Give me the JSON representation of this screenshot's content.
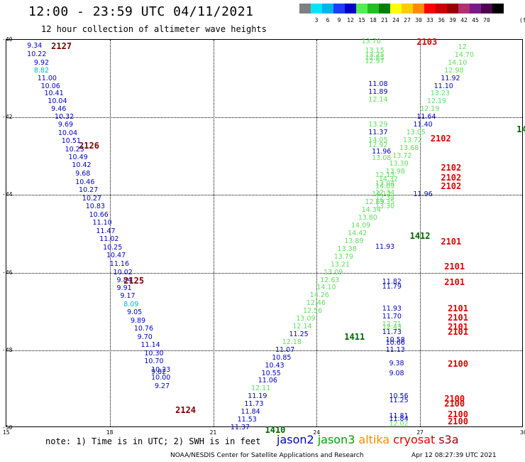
{
  "title": "12:00 - 23:59 UTC 04/11/2021",
  "subtitle": "12 hour collection of altimeter wave heights",
  "colorbar": {
    "colors": [
      "#808080",
      "#00e5ff",
      "#00b4f0",
      "#1e3cff",
      "#0000c8",
      "#50f050",
      "#20c020",
      "#008000",
      "#ffff00",
      "#ffcc00",
      "#ff8c00",
      "#ff0000",
      "#cc0000",
      "#990000",
      "#b03070",
      "#7a1a8a",
      "#500050",
      "#000000"
    ],
    "ticks": [
      "3",
      "6",
      "9",
      "12",
      "15",
      "18",
      "21",
      "24",
      "27",
      "30",
      "33",
      "36",
      "39",
      "42",
      "45",
      "70"
    ],
    "unit": "(ft)"
  },
  "axes": {
    "y_ticks": [
      "-40",
      "-42",
      "-44",
      "-46",
      "-48",
      "-50"
    ],
    "x_ticks": [
      "15",
      "18",
      "21",
      "24",
      "27",
      "30"
    ]
  },
  "chart_data": {
    "type": "scatter",
    "description_units": "x = longitude (deg), y = latitude (deg), value = SWH (ft)",
    "xlim": [
      15,
      30
    ],
    "ylim": [
      -50,
      -40
    ],
    "series_colors": {
      "jason2": "#0000c8",
      "jason3": "#00a000",
      "altika": "#ff8c00",
      "cryosat": "#dd0000",
      "s3a": "#990000"
    },
    "passes": [
      {
        "label": "2127",
        "x": 16.3,
        "y": -40.17,
        "color": "#7a0000"
      },
      {
        "label": "2126",
        "x": 17.1,
        "y": -42.73,
        "color": "#7a0000"
      },
      {
        "label": "2125",
        "x": 18.4,
        "y": -46.2,
        "color": "#7a0000"
      },
      {
        "label": "2124",
        "x": 19.9,
        "y": -49.55,
        "color": "#7a0000"
      },
      {
        "label": "2103",
        "x": 26.9,
        "y": -40.05,
        "color": "#dd0000"
      },
      {
        "label": "2102",
        "x": 27.3,
        "y": -42.55,
        "color": "#dd0000"
      },
      {
        "label": "2102",
        "x": 27.6,
        "y": -43.3,
        "color": "#dd0000"
      },
      {
        "label": "2102",
        "x": 27.6,
        "y": -43.55,
        "color": "#dd0000"
      },
      {
        "label": "2102",
        "x": 27.6,
        "y": -43.78,
        "color": "#dd0000"
      },
      {
        "label": "2101",
        "x": 27.6,
        "y": -45.2,
        "color": "#dd0000"
      },
      {
        "label": "2101",
        "x": 27.7,
        "y": -45.85,
        "color": "#dd0000"
      },
      {
        "label": "2101",
        "x": 27.7,
        "y": -46.25,
        "color": "#dd0000"
      },
      {
        "label": "2101",
        "x": 27.8,
        "y": -46.92,
        "color": "#dd0000"
      },
      {
        "label": "2101",
        "x": 27.8,
        "y": -47.16,
        "color": "#dd0000"
      },
      {
        "label": "2101",
        "x": 27.8,
        "y": -47.4,
        "color": "#dd0000"
      },
      {
        "label": "2101",
        "x": 27.8,
        "y": -47.52,
        "color": "#dd0000"
      },
      {
        "label": "2100",
        "x": 27.8,
        "y": -48.35,
        "color": "#dd0000"
      },
      {
        "label": "2100",
        "x": 27.7,
        "y": -49.25,
        "color": "#dd0000"
      },
      {
        "label": "2100",
        "x": 27.7,
        "y": -49.37,
        "color": "#dd0000"
      },
      {
        "label": "2100",
        "x": 27.8,
        "y": -49.66,
        "color": "#dd0000"
      },
      {
        "label": "2100",
        "x": 27.8,
        "y": -49.84,
        "color": "#dd0000"
      },
      {
        "label": "1412",
        "x": 26.7,
        "y": -45.05,
        "color": "#006400"
      },
      {
        "label": "1411",
        "x": 24.8,
        "y": -47.65,
        "color": "#006400"
      },
      {
        "label": "1410",
        "x": 22.5,
        "y": -50.05,
        "color": "#006400"
      },
      {
        "label": "14",
        "x": 29.8,
        "y": -42.3,
        "color": "#006400"
      }
    ],
    "points": [
      {
        "v": "9.34",
        "x": 15.6,
        "y": -40.17,
        "s": "jason2"
      },
      {
        "v": "10.22",
        "x": 15.6,
        "y": -40.38,
        "s": "jason2"
      },
      {
        "v": "9.92",
        "x": 15.8,
        "y": -40.6,
        "s": "jason2"
      },
      {
        "v": "8.82",
        "x": 15.8,
        "y": -40.8,
        "s": "cyan"
      },
      {
        "v": "11.00",
        "x": 15.9,
        "y": -41.0,
        "s": "jason2"
      },
      {
        "v": "10.06",
        "x": 16.0,
        "y": -41.2,
        "s": "jason2"
      },
      {
        "v": "10.41",
        "x": 16.1,
        "y": -41.4,
        "s": "jason2"
      },
      {
        "v": "10.04",
        "x": 16.2,
        "y": -41.6,
        "s": "jason2"
      },
      {
        "v": "9.46",
        "x": 16.3,
        "y": -41.8,
        "s": "jason2"
      },
      {
        "v": "10.32",
        "x": 16.4,
        "y": -42.0,
        "s": "jason2"
      },
      {
        "v": "9.69",
        "x": 16.5,
        "y": -42.2,
        "s": "jason2"
      },
      {
        "v": "10.04",
        "x": 16.5,
        "y": -42.42,
        "s": "jason2"
      },
      {
        "v": "10.51",
        "x": 16.6,
        "y": -42.62,
        "s": "jason2"
      },
      {
        "v": "10.23",
        "x": 16.7,
        "y": -42.83,
        "s": "jason2"
      },
      {
        "v": "10.49",
        "x": 16.8,
        "y": -43.04,
        "s": "jason2"
      },
      {
        "v": "10.42",
        "x": 16.9,
        "y": -43.25,
        "s": "jason2"
      },
      {
        "v": "9.68",
        "x": 17.0,
        "y": -43.46,
        "s": "jason2"
      },
      {
        "v": "10.46",
        "x": 17.0,
        "y": -43.68,
        "s": "jason2"
      },
      {
        "v": "10.27",
        "x": 17.1,
        "y": -43.88,
        "s": "jason2"
      },
      {
        "v": "10.27",
        "x": 17.2,
        "y": -44.1,
        "s": "jason2"
      },
      {
        "v": "10.83",
        "x": 17.3,
        "y": -44.3,
        "s": "jason2"
      },
      {
        "v": "10.66",
        "x": 17.4,
        "y": -44.52,
        "s": "jason2"
      },
      {
        "v": "11.10",
        "x": 17.5,
        "y": -44.73,
        "s": "jason2"
      },
      {
        "v": "11.47",
        "x": 17.6,
        "y": -44.94,
        "s": "jason2"
      },
      {
        "v": "11.02",
        "x": 17.7,
        "y": -45.15,
        "s": "jason2"
      },
      {
        "v": "10.25",
        "x": 17.8,
        "y": -45.36,
        "s": "jason2"
      },
      {
        "v": "10.47",
        "x": 17.9,
        "y": -45.57,
        "s": "jason2"
      },
      {
        "v": "11.16",
        "x": 18.0,
        "y": -45.78,
        "s": "jason2"
      },
      {
        "v": "10.02",
        "x": 18.1,
        "y": -46.0,
        "s": "jason2"
      },
      {
        "v": "9.84",
        "x": 18.2,
        "y": -46.2,
        "s": "jason2"
      },
      {
        "v": "9.91",
        "x": 18.2,
        "y": -46.41,
        "s": "jason2"
      },
      {
        "v": "9.17",
        "x": 18.3,
        "y": -46.62,
        "s": "jason2"
      },
      {
        "v": "8.09",
        "x": 18.4,
        "y": -46.83,
        "s": "cyan"
      },
      {
        "v": "9.05",
        "x": 18.5,
        "y": -47.04,
        "s": "jason2"
      },
      {
        "v": "9.89",
        "x": 18.6,
        "y": -47.25,
        "s": "jason2"
      },
      {
        "v": "10.76",
        "x": 18.7,
        "y": -47.46,
        "s": "jason2"
      },
      {
        "v": "9.70",
        "x": 18.8,
        "y": -47.67,
        "s": "jason2"
      },
      {
        "v": "11.14",
        "x": 18.9,
        "y": -47.88,
        "s": "jason2"
      },
      {
        "v": "10.30",
        "x": 19.0,
        "y": -48.1,
        "s": "jason2"
      },
      {
        "v": "10.70",
        "x": 19.0,
        "y": -48.3,
        "s": "jason2"
      },
      {
        "v": "10.23",
        "x": 19.2,
        "y": -48.52,
        "s": "jason2"
      },
      {
        "v": "9.82",
        "x": 19.2,
        "y": -48.58,
        "s": "jason2"
      },
      {
        "v": "10.00",
        "x": 19.2,
        "y": -48.72,
        "s": "jason2"
      },
      {
        "v": "9.27",
        "x": 19.3,
        "y": -48.93,
        "s": "jason2"
      },
      {
        "v": "11.37",
        "x": 21.5,
        "y": -50.0,
        "s": "jason2"
      },
      {
        "v": "11.53",
        "x": 21.7,
        "y": -49.8,
        "s": "jason2"
      },
      {
        "v": "11.84",
        "x": 21.8,
        "y": -49.6,
        "s": "jason2"
      },
      {
        "v": "11.73",
        "x": 21.9,
        "y": -49.4,
        "s": "jason2"
      },
      {
        "v": "11.19",
        "x": 22.0,
        "y": -49.2,
        "s": "jason2"
      },
      {
        "v": "12.11",
        "x": 22.1,
        "y": -49.0,
        "s": "jason3"
      },
      {
        "v": "11.06",
        "x": 22.3,
        "y": -48.8,
        "s": "jason2"
      },
      {
        "v": "10.55",
        "x": 22.4,
        "y": -48.6,
        "s": "jason2"
      },
      {
        "v": "10.43",
        "x": 22.5,
        "y": -48.4,
        "s": "jason2"
      },
      {
        "v": "10.85",
        "x": 22.7,
        "y": -48.2,
        "s": "jason2"
      },
      {
        "v": "11.07",
        "x": 22.8,
        "y": -48.0,
        "s": "jason2"
      },
      {
        "v": "12.18",
        "x": 23.0,
        "y": -47.8,
        "s": "jason3"
      },
      {
        "v": "11.25",
        "x": 23.2,
        "y": -47.6,
        "s": "jason2"
      },
      {
        "v": "12.14",
        "x": 23.3,
        "y": -47.4,
        "s": "jason3"
      },
      {
        "v": "13.09",
        "x": 23.4,
        "y": -47.2,
        "s": "jason3"
      },
      {
        "v": "12.56",
        "x": 23.6,
        "y": -47.0,
        "s": "jason3"
      },
      {
        "v": "12.46",
        "x": 23.7,
        "y": -46.8,
        "s": "jason3"
      },
      {
        "v": "14.26",
        "x": 23.8,
        "y": -46.6,
        "s": "jason3"
      },
      {
        "v": "14.10",
        "x": 24.0,
        "y": -46.4,
        "s": "jason3"
      },
      {
        "v": "12.63",
        "x": 24.1,
        "y": -46.2,
        "s": "jason3"
      },
      {
        "v": "13.09",
        "x": 24.2,
        "y": -46.0,
        "s": "jason3"
      },
      {
        "v": "13.21",
        "x": 24.4,
        "y": -45.8,
        "s": "jason3"
      },
      {
        "v": "13.79",
        "x": 24.5,
        "y": -45.6,
        "s": "jason3"
      },
      {
        "v": "13.38",
        "x": 24.6,
        "y": -45.4,
        "s": "jason3"
      },
      {
        "v": "13.89",
        "x": 24.8,
        "y": -45.2,
        "s": "jason3"
      },
      {
        "v": "14.42",
        "x": 24.9,
        "y": -45.0,
        "s": "jason3"
      },
      {
        "v": "14.09",
        "x": 25.0,
        "y": -44.8,
        "s": "jason3"
      },
      {
        "v": "13.80",
        "x": 25.2,
        "y": -44.6,
        "s": "jason3"
      },
      {
        "v": "14.34",
        "x": 25.3,
        "y": -44.4,
        "s": "jason3"
      },
      {
        "v": "12.69",
        "x": 25.4,
        "y": -44.2,
        "s": "jason3"
      },
      {
        "v": "14.12",
        "x": 25.6,
        "y": -44.0,
        "s": "jason3"
      },
      {
        "v": "14.09",
        "x": 25.7,
        "y": -43.8,
        "s": "jason3"
      },
      {
        "v": "14.32",
        "x": 25.8,
        "y": -43.6,
        "s": "jason3"
      },
      {
        "v": "13.98",
        "x": 26.0,
        "y": -43.4,
        "s": "jason3"
      },
      {
        "v": "13.30",
        "x": 26.1,
        "y": -43.2,
        "s": "jason3"
      },
      {
        "v": "13.72",
        "x": 26.2,
        "y": -43.0,
        "s": "jason3"
      },
      {
        "v": "13.68",
        "x": 26.4,
        "y": -42.8,
        "s": "jason3"
      },
      {
        "v": "13.72",
        "x": 26.5,
        "y": -42.6,
        "s": "jason3"
      },
      {
        "v": "13.05",
        "x": 26.6,
        "y": -42.4,
        "s": "jason3"
      },
      {
        "v": "11.40",
        "x": 26.8,
        "y": -42.2,
        "s": "jason2"
      },
      {
        "v": "11.64",
        "x": 26.9,
        "y": -42.0,
        "s": "jason2"
      },
      {
        "v": "12.19",
        "x": 27.0,
        "y": -41.8,
        "s": "jason3"
      },
      {
        "v": "12.19",
        "x": 27.2,
        "y": -41.6,
        "s": "jason3"
      },
      {
        "v": "13.23",
        "x": 27.3,
        "y": -41.4,
        "s": "jason3"
      },
      {
        "v": "11.10",
        "x": 27.4,
        "y": -41.2,
        "s": "jason2"
      },
      {
        "v": "11.92",
        "x": 27.6,
        "y": -41.0,
        "s": "jason2"
      },
      {
        "v": "12.98",
        "x": 27.7,
        "y": -40.8,
        "s": "jason3"
      },
      {
        "v": "14.10",
        "x": 27.8,
        "y": -40.6,
        "s": "jason3"
      },
      {
        "v": "14.70",
        "x": 28.0,
        "y": -40.4,
        "s": "jason3"
      },
      {
        "v": "12",
        "x": 28.1,
        "y": -40.2,
        "s": "jason3"
      },
      {
        "v": "13.70",
        "x": 25.3,
        "y": -40.05,
        "s": "jason3"
      },
      {
        "v": "13.15",
        "x": 25.4,
        "y": -40.3,
        "s": "jason3"
      },
      {
        "v": "13.25",
        "x": 25.4,
        "y": -40.4,
        "s": "jason3"
      },
      {
        "v": "12.85",
        "x": 25.4,
        "y": -40.48,
        "s": "jason3"
      },
      {
        "v": "12.97",
        "x": 25.4,
        "y": -40.56,
        "s": "jason3"
      },
      {
        "v": "11.08",
        "x": 25.5,
        "y": -41.15,
        "s": "jason2"
      },
      {
        "v": "11.89",
        "x": 25.5,
        "y": -41.35,
        "s": "jason2"
      },
      {
        "v": "12.14",
        "x": 25.5,
        "y": -41.55,
        "s": "jason3"
      },
      {
        "v": "13.29",
        "x": 25.5,
        "y": -42.2,
        "s": "jason3"
      },
      {
        "v": "11.37",
        "x": 25.5,
        "y": -42.4,
        "s": "jason2"
      },
      {
        "v": "14.05",
        "x": 25.5,
        "y": -42.6,
        "s": "jason3"
      },
      {
        "v": "12.92",
        "x": 25.5,
        "y": -42.72,
        "s": "jason3"
      },
      {
        "v": "11.96",
        "x": 25.6,
        "y": -42.9,
        "s": "jason2"
      },
      {
        "v": "13.08",
        "x": 25.6,
        "y": -43.06,
        "s": "jason3"
      },
      {
        "v": "12.13",
        "x": 25.7,
        "y": -43.5,
        "s": "jason3"
      },
      {
        "v": "13.04",
        "x": 25.7,
        "y": -43.72,
        "s": "jason3"
      },
      {
        "v": "12.34",
        "x": 25.7,
        "y": -43.95,
        "s": "jason3"
      },
      {
        "v": "12.34",
        "x": 25.7,
        "y": -44.08,
        "s": "jason3"
      },
      {
        "v": "11.96",
        "x": 26.8,
        "y": -44.0,
        "s": "jason2"
      },
      {
        "v": "13.35",
        "x": 25.7,
        "y": -44.2,
        "s": "jason3"
      },
      {
        "v": "13.30",
        "x": 25.7,
        "y": -44.3,
        "s": "jason3"
      },
      {
        "v": "11.93",
        "x": 25.7,
        "y": -45.35,
        "s": "jason2"
      },
      {
        "v": "11.82",
        "x": 25.9,
        "y": -46.25,
        "s": "jason2"
      },
      {
        "v": "11.79",
        "x": 25.9,
        "y": -46.37,
        "s": "jason2"
      },
      {
        "v": "11.93",
        "x": 25.9,
        "y": -46.95,
        "s": "jason2"
      },
      {
        "v": "11.70",
        "x": 25.9,
        "y": -47.15,
        "s": "jason2"
      },
      {
        "v": "12.71",
        "x": 25.9,
        "y": -47.35,
        "s": "jason3"
      },
      {
        "v": "12.43",
        "x": 25.9,
        "y": -47.42,
        "s": "jason3"
      },
      {
        "v": "11.73",
        "x": 25.9,
        "y": -47.55,
        "s": "jason2"
      },
      {
        "v": "10.58",
        "x": 26.0,
        "y": -47.75,
        "s": "jason2"
      },
      {
        "v": "10.66",
        "x": 26.0,
        "y": -47.82,
        "s": "jason2"
      },
      {
        "v": "11.13",
        "x": 26.0,
        "y": -48.0,
        "s": "jason2"
      },
      {
        "v": "9.38",
        "x": 26.1,
        "y": -48.35,
        "s": "jason2"
      },
      {
        "v": "9.08",
        "x": 26.1,
        "y": -48.6,
        "s": "jason2"
      },
      {
        "v": "10.56",
        "x": 26.1,
        "y": -49.2,
        "s": "jason2"
      },
      {
        "v": "11.25",
        "x": 26.1,
        "y": -49.3,
        "s": "jason2"
      },
      {
        "v": "11.81",
        "x": 26.1,
        "y": -49.7,
        "s": "jason2"
      },
      {
        "v": "11.84",
        "x": 26.1,
        "y": -49.78,
        "s": "jason2"
      },
      {
        "v": "12.02",
        "x": 26.1,
        "y": -49.9,
        "s": "jason3"
      }
    ]
  },
  "note": "note: 1) Time is in UTC; 2) SWH is in feet",
  "legend": [
    {
      "name": "jason2",
      "color": "#0000c8"
    },
    {
      "name": "jason3",
      "color": "#00a000"
    },
    {
      "name": "altika",
      "color": "#ff8c00"
    },
    {
      "name": "cryosat",
      "color": "#dd0000"
    },
    {
      "name": "s3a",
      "color": "#990000"
    }
  ],
  "footer": "NOAA/NESDIS Center for Satellite Applications and Research",
  "footer_time": "Apr 12 08:27:39 UTC 2021"
}
